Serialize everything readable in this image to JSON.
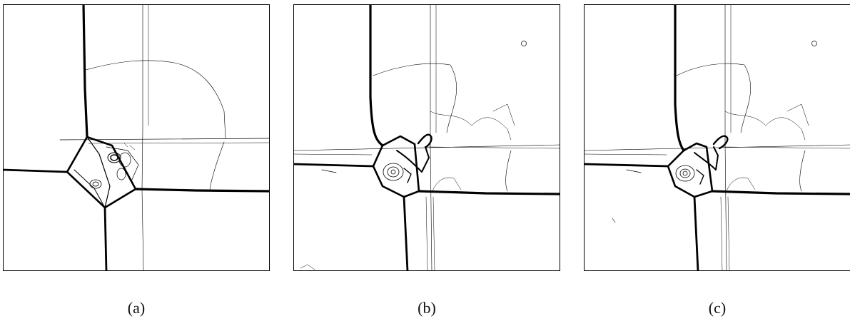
{
  "figure": {
    "panels": [
      {
        "id": "a",
        "caption": "(a)"
      },
      {
        "id": "b",
        "caption": "(b)"
      },
      {
        "id": "c",
        "caption": "(c)"
      }
    ]
  }
}
